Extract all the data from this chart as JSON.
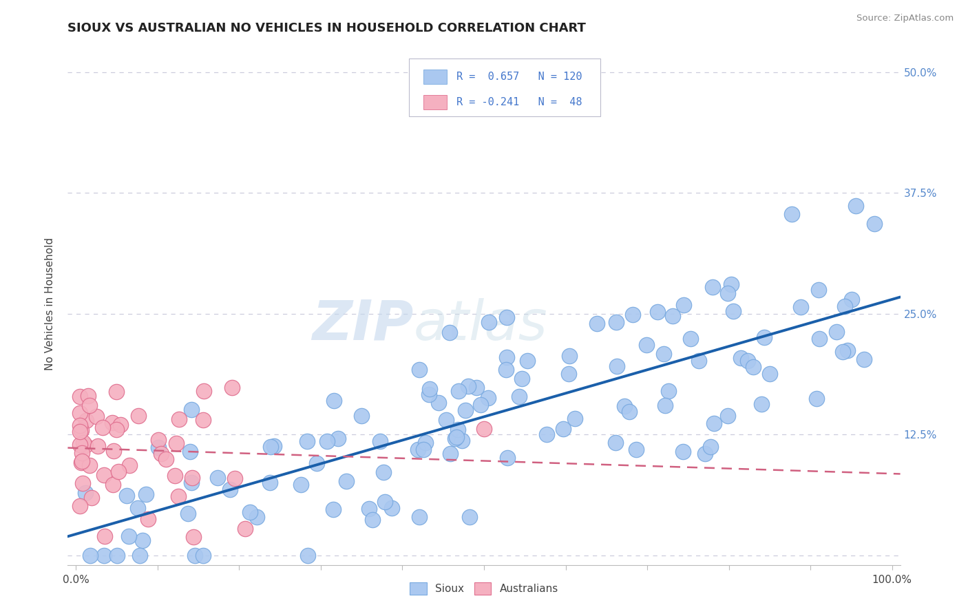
{
  "title": "SIOUX VS AUSTRALIAN NO VEHICLES IN HOUSEHOLD CORRELATION CHART",
  "source": "Source: ZipAtlas.com",
  "ylabel": "No Vehicles in Household",
  "watermark_zip": "ZIP",
  "watermark_atlas": "atlas",
  "sioux_color": "#aac8f0",
  "sioux_edge": "#7aaae0",
  "australian_color": "#f5b0c0",
  "australian_edge": "#e07090",
  "trend_sioux_color": "#1a5faa",
  "trend_australian_color": "#d06080",
  "right_tick_color": "#5588cc",
  "background_color": "#ffffff",
  "grid_color": "#ccccdd",
  "title_color": "#222222",
  "source_color": "#888888",
  "legend_text_color": "#4477cc"
}
